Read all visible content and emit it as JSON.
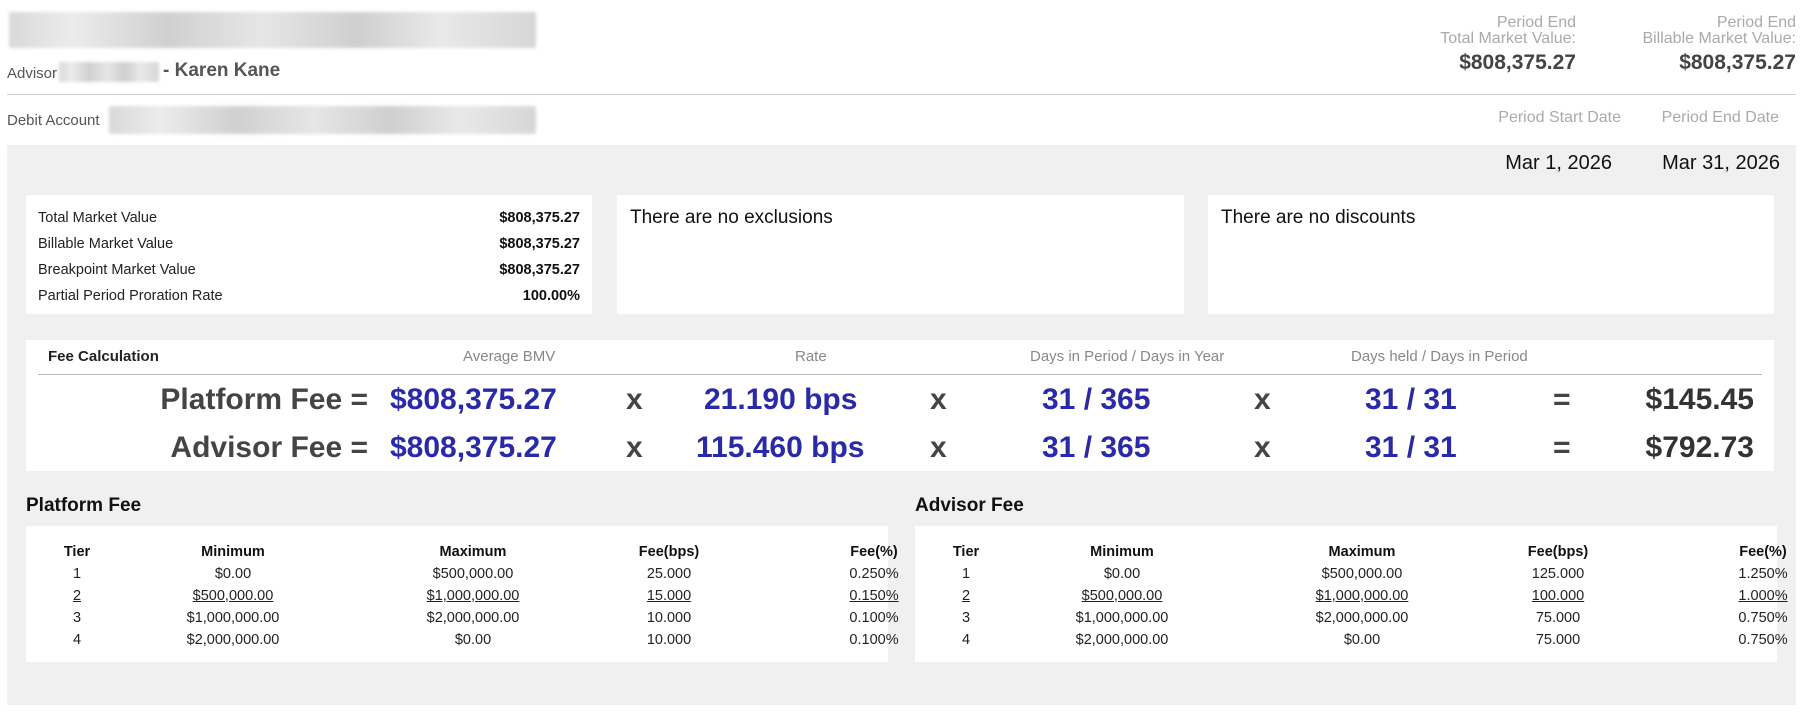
{
  "header": {
    "advisor_label": "Advisor",
    "advisor_name": "- Karen Kane",
    "tmv_label_1": "Period End",
    "tmv_label_2": "Total Market Value:",
    "tmv_value": "$808,375.27",
    "bmv_label_1": "Period End",
    "bmv_label_2": "Billable Market Value:",
    "bmv_value": "$808,375.27",
    "debit_label": "Debit Account",
    "period_start_label": "Period Start Date",
    "period_end_label": "Period End Date",
    "period_start_value": "Mar 1, 2026",
    "period_end_value": "Mar 31, 2026"
  },
  "summary": [
    {
      "label": "Total Market Value",
      "value": "$808,375.27"
    },
    {
      "label": "Billable Market Value",
      "value": "$808,375.27"
    },
    {
      "label": "Breakpoint Market Value",
      "value": "$808,375.27"
    },
    {
      "label": "Partial Period Proration Rate",
      "value": "100.00%"
    }
  ],
  "exclusions_text": "There are no exclusions",
  "discounts_text": "There are no discounts",
  "fee_calc": {
    "title": "Fee Calculation",
    "col_bmv": "Average BMV",
    "col_rate": "Rate",
    "col_days": "Days in Period / Days in Year",
    "col_held": "Days held / Days in Period",
    "rows": [
      {
        "name": "Platform Fee =",
        "bmv": "$808,375.27",
        "x1": "x",
        "rate": "21.190 bps",
        "x2": "x",
        "days": "31 / 365",
        "x3": "x",
        "held": "31 / 31",
        "eq": "=",
        "result": "$145.45"
      },
      {
        "name": "Advisor Fee =",
        "bmv": "$808,375.27",
        "x1": "x",
        "rate": "115.460 bps",
        "x2": "x",
        "days": "31 / 365",
        "x3": "x",
        "held": "31 / 31",
        "eq": "=",
        "result": "$792.73"
      }
    ]
  },
  "platform_tiers": {
    "title": "Platform Fee",
    "headers": [
      "Tier",
      "Minimum",
      "Maximum",
      "Fee(bps)",
      "Fee(%)"
    ],
    "rows": [
      [
        "1",
        "$0.00",
        "$500,000.00",
        "25.000",
        "0.250%"
      ],
      [
        "2",
        "$500,000.00",
        "$1,000,000.00",
        "15.000",
        "0.150%"
      ],
      [
        "3",
        "$1,000,000.00",
        "$2,000,000.00",
        "10.000",
        "0.100%"
      ],
      [
        "4",
        "$2,000,000.00",
        "$0.00",
        "10.000",
        "0.100%"
      ]
    ],
    "active_tier": "2"
  },
  "advisor_tiers": {
    "title": "Advisor Fee",
    "headers": [
      "Tier",
      "Minimum",
      "Maximum",
      "Fee(bps)",
      "Fee(%)"
    ],
    "rows": [
      [
        "1",
        "$0.00",
        "$500,000.00",
        "125.000",
        "1.250%"
      ],
      [
        "2",
        "$500,000.00",
        "$1,000,000.00",
        "100.000",
        "1.000%"
      ],
      [
        "3",
        "$1,000,000.00",
        "$2,000,000.00",
        "75.000",
        "0.750%"
      ],
      [
        "4",
        "$2,000,000.00",
        "$0.00",
        "75.000",
        "0.750%"
      ]
    ],
    "active_tier": "2"
  }
}
